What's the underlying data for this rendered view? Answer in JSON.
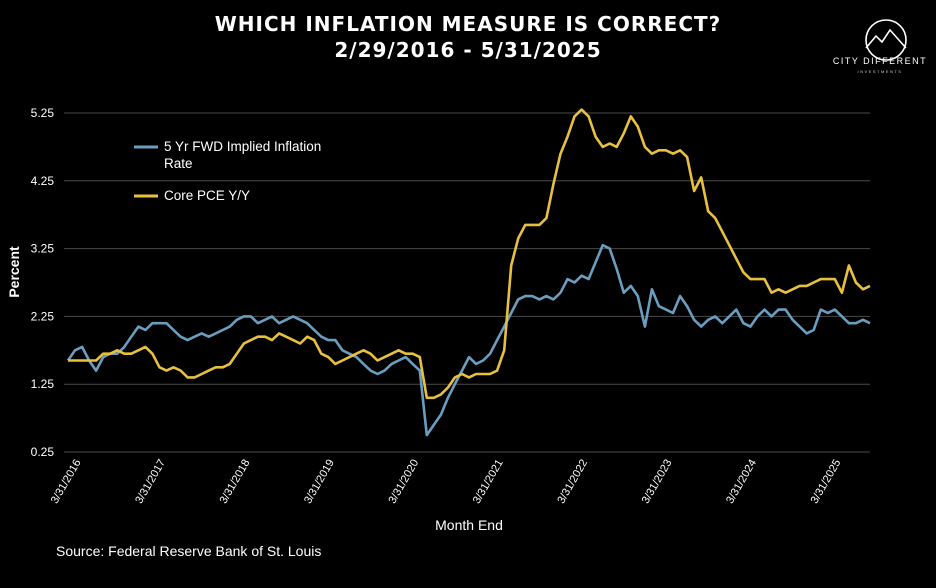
{
  "title": "WHICH INFLATION MEASURE IS CORRECT?",
  "subtitle": "2/29/2016 - 5/31/2025",
  "logo": {
    "name": "CITY DIFFERENT",
    "sub": "INVESTMENTS",
    "icon": "mountain-circle-logo"
  },
  "source": "Source: Federal Reserve Bank of St. Louis",
  "colors": {
    "background": "#000000",
    "five_yr": "#6a9ec0",
    "core_pce": "#e8c040",
    "grid": "#4a4a4a",
    "text": "#ffffff"
  },
  "chart_data": {
    "type": "line",
    "xlabel": "Month End",
    "ylabel": "Percent",
    "ylim": [
      0.25,
      5.25
    ],
    "yticks": [
      "0.25",
      "1.25",
      "2.25",
      "3.25",
      "4.25",
      "5.25"
    ],
    "xticks": [
      "3/31/2016",
      "3/31/2017",
      "3/31/2018",
      "3/31/2019",
      "3/31/2020",
      "3/31/2021",
      "3/31/2022",
      "3/31/2023",
      "3/31/2024",
      "3/31/2025"
    ],
    "grid": "horizontal",
    "legend_position": "top-left",
    "x_start": "2016-02-29",
    "x_end": "2025-05-31",
    "series": [
      {
        "name": "5 Yr FWD Implied Inflation Rate",
        "values": [
          1.6,
          1.75,
          1.8,
          1.6,
          1.45,
          1.65,
          1.7,
          1.7,
          1.8,
          1.95,
          2.1,
          2.05,
          2.15,
          2.15,
          2.15,
          2.05,
          1.95,
          1.9,
          1.95,
          2.0,
          1.95,
          2.0,
          2.05,
          2.1,
          2.2,
          2.25,
          2.25,
          2.15,
          2.2,
          2.25,
          2.15,
          2.2,
          2.25,
          2.2,
          2.15,
          2.05,
          1.95,
          1.9,
          1.9,
          1.75,
          1.7,
          1.65,
          1.55,
          1.45,
          1.4,
          1.45,
          1.55,
          1.6,
          1.65,
          1.55,
          1.45,
          0.5,
          0.65,
          0.8,
          1.05,
          1.25,
          1.45,
          1.65,
          1.55,
          1.6,
          1.7,
          1.9,
          2.1,
          2.3,
          2.5,
          2.55,
          2.55,
          2.5,
          2.55,
          2.5,
          2.6,
          2.8,
          2.75,
          2.85,
          2.8,
          3.05,
          3.3,
          3.25,
          2.95,
          2.6,
          2.7,
          2.55,
          2.1,
          2.65,
          2.4,
          2.35,
          2.3,
          2.55,
          2.4,
          2.2,
          2.1,
          2.2,
          2.25,
          2.15,
          2.25,
          2.35,
          2.15,
          2.1,
          2.25,
          2.35,
          2.25,
          2.35,
          2.35,
          2.2,
          2.1,
          2.0,
          2.05,
          2.35,
          2.3,
          2.35,
          2.25,
          2.15,
          2.15,
          2.2,
          2.15
        ]
      },
      {
        "name": "Core PCE Y/Y",
        "values": [
          1.6,
          1.6,
          1.6,
          1.6,
          1.6,
          1.7,
          1.7,
          1.75,
          1.7,
          1.7,
          1.75,
          1.8,
          1.7,
          1.5,
          1.45,
          1.5,
          1.45,
          1.35,
          1.35,
          1.4,
          1.45,
          1.5,
          1.5,
          1.55,
          1.7,
          1.85,
          1.9,
          1.95,
          1.95,
          1.9,
          2.0,
          1.95,
          1.9,
          1.85,
          1.95,
          1.9,
          1.7,
          1.65,
          1.55,
          1.6,
          1.65,
          1.7,
          1.75,
          1.7,
          1.6,
          1.65,
          1.7,
          1.75,
          1.7,
          1.7,
          1.65,
          1.05,
          1.05,
          1.1,
          1.2,
          1.35,
          1.4,
          1.35,
          1.4,
          1.4,
          1.4,
          1.45,
          1.75,
          3.0,
          3.4,
          3.6,
          3.6,
          3.6,
          3.7,
          4.2,
          4.65,
          4.9,
          5.2,
          5.3,
          5.2,
          4.9,
          4.75,
          4.8,
          4.75,
          4.95,
          5.2,
          5.05,
          4.75,
          4.65,
          4.7,
          4.7,
          4.65,
          4.7,
          4.6,
          4.1,
          4.3,
          3.8,
          3.7,
          3.5,
          3.3,
          3.1,
          2.9,
          2.8,
          2.8,
          2.8,
          2.6,
          2.65,
          2.6,
          2.65,
          2.7,
          2.7,
          2.75,
          2.8,
          2.8,
          2.8,
          2.6,
          3.0,
          2.75,
          2.65,
          2.7
        ]
      }
    ]
  }
}
